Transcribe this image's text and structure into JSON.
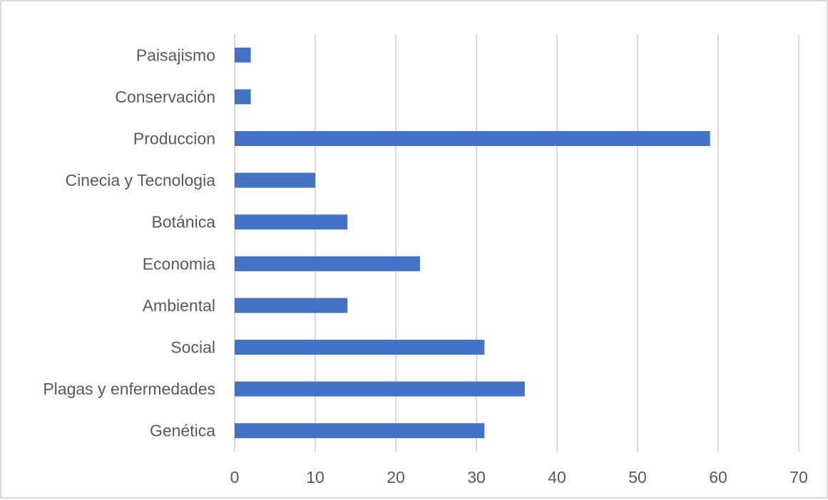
{
  "chart_data": {
    "type": "bar",
    "orientation": "horizontal",
    "title": "",
    "xlabel": "",
    "ylabel": "",
    "categories": [
      "Paisajismo",
      "Conservación",
      "Produccion",
      "Cinecia y Tecnologia",
      "Botánica",
      "Economia",
      "Ambiental",
      "Social",
      "Plagas y enfermedades",
      "Genética"
    ],
    "values": [
      2,
      2,
      59,
      10,
      14,
      23,
      14,
      31,
      36,
      31
    ],
    "xlim": [
      0,
      70
    ],
    "xticks": [
      0,
      10,
      20,
      30,
      40,
      50,
      60,
      70
    ],
    "grid": "vertical",
    "legend": "none",
    "colors": {
      "bar": "#4472c4",
      "grid": "#d9d9d9",
      "text": "#595959",
      "border": "#d9d9d9"
    }
  }
}
